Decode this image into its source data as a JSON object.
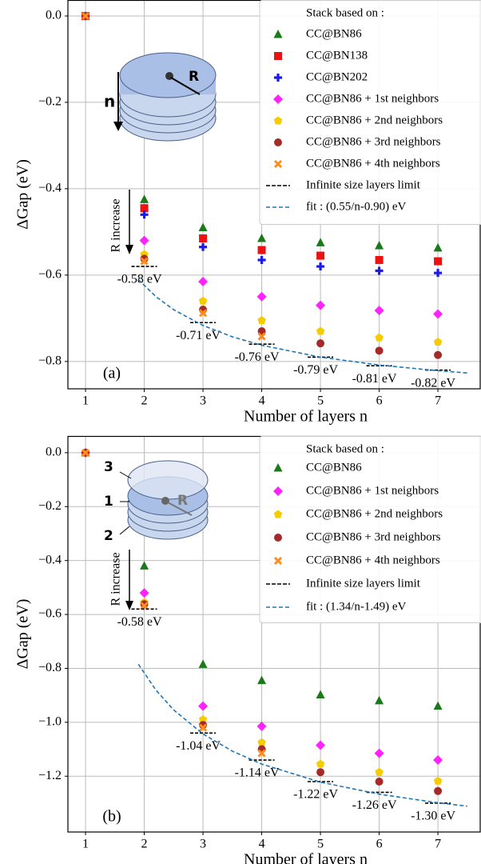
{
  "chart_data": [
    {
      "type": "scatter",
      "panel_label": "(a)",
      "xlabel": "Number of layers n",
      "ylabel": "ΔGap (eV)",
      "legend_title": "Stack based on :",
      "annotations": [
        "R",
        "n",
        "R increase"
      ],
      "x": [
        1,
        2,
        3,
        4,
        5,
        6,
        7
      ],
      "xlim": [
        0.7,
        7.72
      ],
      "ylim": [
        -0.8633,
        0.037
      ],
      "xticks": [
        1,
        2,
        3,
        4,
        5,
        6,
        7
      ],
      "yticks": [
        {
          "value": 0,
          "label": "0.0"
        },
        {
          "value": -0.2,
          "label": "−0.2"
        },
        {
          "value": -0.4,
          "label": "−0.4"
        },
        {
          "value": -0.6,
          "label": "−0.6"
        },
        {
          "value": -0.8,
          "label": "−0.8"
        }
      ],
      "grid": true,
      "series": [
        {
          "name": "CC@BN86",
          "color": "#1a7a1a",
          "marker": "triangle",
          "values": [
            0,
            -0.425,
            -0.49,
            -0.515,
            -0.525,
            -0.532,
            -0.537
          ]
        },
        {
          "name": "CC@BN138",
          "color": "#ee1111",
          "marker": "square",
          "values": [
            0,
            -0.445,
            -0.515,
            -0.542,
            -0.555,
            -0.565,
            -0.568
          ]
        },
        {
          "name": "CC@BN202",
          "color": "#1a1aee",
          "marker": "plus",
          "values": [
            0,
            -0.46,
            -0.535,
            -0.565,
            -0.58,
            -0.59,
            -0.595
          ]
        },
        {
          "name": "CC@BN86 + 1st neighbors",
          "color": "#ff22ff",
          "marker": "diamond",
          "values": [
            0,
            -0.52,
            -0.615,
            -0.65,
            -0.67,
            -0.682,
            -0.69
          ]
        },
        {
          "name": "CC@BN86 + 2nd neighbors",
          "color": "#f5cc00",
          "marker": "pentagon",
          "values": [
            0,
            -0.552,
            -0.66,
            -0.705,
            -0.73,
            -0.745,
            -0.755
          ]
        },
        {
          "name": "CC@BN86 + 3rd neighbors",
          "color": "#a52a2a",
          "marker": "circle",
          "values": [
            0,
            -0.562,
            -0.68,
            -0.73,
            -0.758,
            -0.775,
            -0.785
          ]
        },
        {
          "name": "CC@BN86 + 4th neighbors",
          "color": "#ff8c1a",
          "marker": "x",
          "values": [
            0,
            -0.568,
            -0.688,
            -0.742,
            null,
            null,
            null
          ]
        },
        {
          "name": "Infinite size layers limit",
          "color": "#000000",
          "marker": "dash",
          "values": [
            null,
            -0.58,
            -0.71,
            -0.76,
            -0.79,
            -0.81,
            -0.82
          ],
          "value_labels": [
            null,
            "-0.58 eV",
            "-0.71 eV",
            "-0.76 eV",
            "-0.79 eV",
            "-0.81 eV",
            "-0.82 eV"
          ]
        },
        {
          "name": "fit : (0.55/n-0.90) eV",
          "color": "#1f77b4",
          "marker": "dashed-line",
          "x": [
            1.9,
            2.2,
            2.5,
            3,
            3.5,
            4,
            5,
            6,
            7,
            7.5
          ],
          "values": [
            -0.6105,
            -0.65,
            -0.68,
            -0.7167,
            -0.7429,
            -0.7625,
            -0.79,
            -0.8083,
            -0.8214,
            -0.8267
          ]
        }
      ]
    },
    {
      "type": "scatter",
      "panel_label": "(b)",
      "xlabel": "Number of layers n",
      "ylabel": "ΔGap (eV)",
      "legend_title": "Stack based on :",
      "annotations": [
        "3",
        "1",
        "2",
        "R",
        "R increase"
      ],
      "x": [
        1,
        2,
        3,
        4,
        5,
        6,
        7
      ],
      "xlim": [
        0.7,
        7.72
      ],
      "ylim": [
        -1.407,
        0.062
      ],
      "xticks": [
        1,
        2,
        3,
        4,
        5,
        6,
        7
      ],
      "yticks": [
        {
          "value": 0,
          "label": "0.0"
        },
        {
          "value": -0.2,
          "label": "−0.2"
        },
        {
          "value": -0.4,
          "label": "−0.4"
        },
        {
          "value": -0.6,
          "label": "−0.6"
        },
        {
          "value": -0.8,
          "label": "−0.8"
        },
        {
          "value": -1.0,
          "label": "−1.0"
        },
        {
          "value": -1.2,
          "label": "−1.2"
        }
      ],
      "grid": true,
      "series": [
        {
          "name": "CC@BN86",
          "color": "#1a7a1a",
          "marker": "triangle",
          "values": [
            0,
            -0.42,
            -0.785,
            -0.845,
            -0.898,
            -0.92,
            -0.94
          ]
        },
        {
          "name": "CC@BN86 + 1st neighbors",
          "color": "#ff22ff",
          "marker": "diamond",
          "values": [
            0,
            -0.52,
            -0.94,
            -1.015,
            -1.085,
            -1.115,
            -1.14
          ]
        },
        {
          "name": "CC@BN86 + 2nd neighbors",
          "color": "#f5cc00",
          "marker": "pentagon",
          "values": [
            0,
            -0.555,
            -0.99,
            -1.075,
            -1.155,
            -1.185,
            -1.218
          ]
        },
        {
          "name": "CC@BN86 + 3rd neighbors",
          "color": "#a52a2a",
          "marker": "circle",
          "values": [
            0,
            -0.562,
            -1.01,
            -1.1,
            -1.185,
            -1.22,
            -1.255
          ]
        },
        {
          "name": "CC@BN86 + 4th neighbors",
          "color": "#ff8c1a",
          "marker": "x",
          "values": [
            0,
            -0.568,
            -1.02,
            -1.115,
            null,
            null,
            null
          ]
        },
        {
          "name": "Infinite size layers limit",
          "color": "#000000",
          "marker": "dash",
          "values": [
            null,
            -0.58,
            -1.04,
            -1.14,
            -1.22,
            -1.26,
            -1.3
          ],
          "value_labels": [
            null,
            "-0.58 eV",
            "-1.04 eV",
            "-1.14 eV",
            "-1.22 eV",
            "-1.26 eV",
            "-1.30 eV"
          ]
        },
        {
          "name": "fit : (1.34/n-1.49) eV",
          "color": "#1f77b4",
          "marker": "dashed-line",
          "x": [
            1.9,
            2.2,
            2.5,
            3,
            3.5,
            4,
            5,
            6,
            7,
            7.5
          ],
          "values": [
            -0.7847,
            -0.8809,
            -0.954,
            -1.0433,
            -1.1071,
            -1.155,
            -1.222,
            -1.2667,
            -1.2986,
            -1.3113
          ]
        }
      ]
    }
  ]
}
